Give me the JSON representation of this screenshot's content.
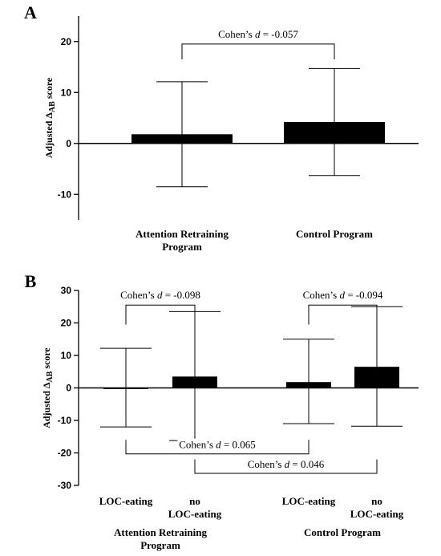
{
  "chart_data": [
    {
      "panel_label": "A",
      "type": "bar",
      "ylabel": "Adjusted Δ",
      "ylabel_sub": "AB",
      "ylabel_suffix": " score",
      "ylim": [
        -15,
        25
      ],
      "yticks": [
        -10,
        0,
        10,
        20
      ],
      "categories": [
        {
          "lines": [
            "Attention Retraining",
            "Program"
          ]
        },
        {
          "lines": [
            "Control Program"
          ]
        }
      ],
      "values": [
        1.8,
        4.2
      ],
      "error_upper": [
        12.1,
        14.7
      ],
      "error_lower": [
        -8.5,
        -6.3
      ],
      "bar_color": "#000000",
      "annotations": [
        {
          "from": 0,
          "to": 1,
          "position": "above",
          "level": 19.5,
          "drop": 16.5,
          "prefix": "Cohen’s ",
          "d": "d",
          "value": " = -0.057"
        }
      ]
    },
    {
      "panel_label": "B",
      "type": "bar",
      "ylabel": "Adjusted Δ",
      "ylabel_sub": "AB",
      "ylabel_suffix": " score",
      "ylim": [
        -30,
        30
      ],
      "yticks": [
        -30,
        -20,
        -10,
        0,
        10,
        20,
        30
      ],
      "categories": [
        {
          "lines": [
            "LOC-eating"
          ]
        },
        {
          "lines": [
            "no",
            "LOC-eating"
          ]
        },
        {
          "lines": [
            "LOC-eating"
          ]
        },
        {
          "lines": [
            "no",
            "LOC-eating"
          ]
        }
      ],
      "groups": [
        {
          "lines": [
            "Attention Retraining",
            "Program"
          ]
        },
        {
          "lines": [
            "Control Program"
          ]
        }
      ],
      "values": [
        -0.2,
        3.5,
        1.8,
        6.5
      ],
      "error_upper": [
        12.2,
        23.5,
        15.0,
        25.0
      ],
      "error_lower": [
        -12.0,
        -16.2,
        -11.0,
        -11.8
      ],
      "bar_color": "#000000",
      "annotations": [
        {
          "from": 0,
          "to": 1,
          "position": "above",
          "level": 25.5,
          "drop": 19.5,
          "prefix": "Cohen’s ",
          "d": "d",
          "value": " = -0.098"
        },
        {
          "from": 2,
          "to": 3,
          "position": "above",
          "level": 25.5,
          "drop": 19.5,
          "prefix": "Cohen’s ",
          "d": "d",
          "value": " = -0.094"
        },
        {
          "from": 0,
          "to": 2,
          "position": "below",
          "level": -20.3,
          "drop": -16.0,
          "prefix": "Cohen’s ",
          "d": "d",
          "value": " = 0.065"
        },
        {
          "from": 1,
          "to": 3,
          "position": "below",
          "level": -26.3,
          "drop": -22.0,
          "prefix": "Cohen’s ",
          "d": "d",
          "value": " = 0.046"
        }
      ]
    }
  ]
}
